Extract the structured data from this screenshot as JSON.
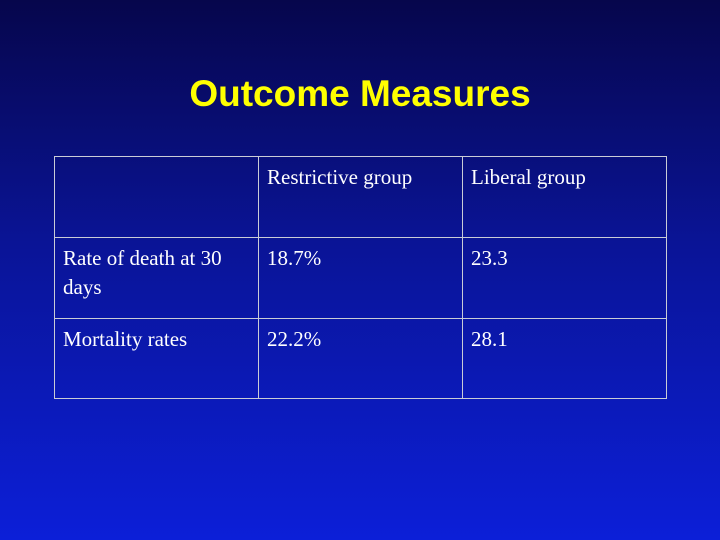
{
  "title": "Outcome Measures",
  "colors": {
    "title": "#ffff00",
    "text": "#ffffff",
    "background_top": "#06064c",
    "background_bottom": "#0c1fd8",
    "table_border": "#c9ccd6"
  },
  "table": {
    "headers": [
      "",
      "Restrictive group",
      "Liberal group"
    ],
    "rows": [
      [
        "Rate of death at 30 days",
        "18.7%",
        "23.3"
      ],
      [
        "Mortality rates",
        "22.2%",
        "28.1"
      ]
    ]
  }
}
